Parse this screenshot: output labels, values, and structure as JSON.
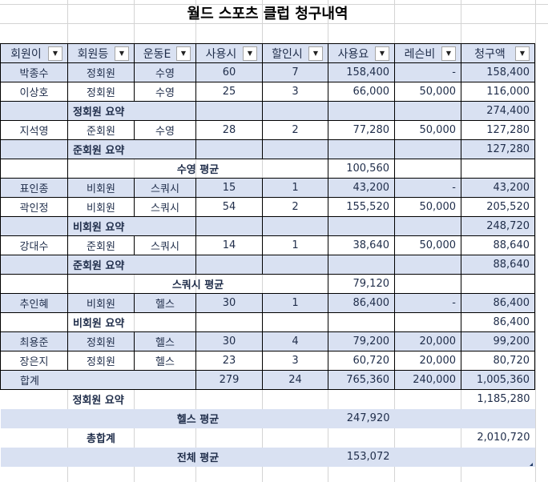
{
  "sheet": {
    "title": "월드 스포츠 클럽 청구내역",
    "headers": [
      "회원이",
      "회원등",
      "운동E",
      "사용시",
      "할인시",
      "사용요",
      "레슨비",
      "청구액"
    ],
    "filter_icon": "dropdown-arrow-icon"
  },
  "rows": [
    {
      "type": "data",
      "band": true,
      "cells": [
        "박종수",
        "정회원",
        "수영",
        "60",
        "7",
        "158,400",
        "-",
        "158,400"
      ]
    },
    {
      "type": "data",
      "band": false,
      "cells": [
        "이상호",
        "정회원",
        "수영",
        "25",
        "3",
        "66,000",
        "50,000",
        "116,000"
      ]
    },
    {
      "type": "subtotal",
      "band": true,
      "cells": [
        "",
        "정회원 요약",
        "",
        "",
        "",
        "",
        "",
        "274,400"
      ]
    },
    {
      "type": "data",
      "band": false,
      "cells": [
        "지석영",
        "준회원",
        "수영",
        "28",
        "2",
        "77,280",
        "50,000",
        "127,280"
      ]
    },
    {
      "type": "subtotal",
      "band": true,
      "cells": [
        "",
        "준회원 요약",
        "",
        "",
        "",
        "",
        "",
        "127,280"
      ]
    },
    {
      "type": "average",
      "band": false,
      "cells": [
        "",
        "수영 평균",
        "",
        "",
        "",
        "100,560",
        "",
        ""
      ]
    },
    {
      "type": "data",
      "band": true,
      "cells": [
        "표인종",
        "비회원",
        "스쿼시",
        "15",
        "1",
        "43,200",
        "-",
        "43,200"
      ]
    },
    {
      "type": "data",
      "band": false,
      "cells": [
        "곽인정",
        "비회원",
        "스쿼시",
        "54",
        "2",
        "155,520",
        "50,000",
        "205,520"
      ]
    },
    {
      "type": "subtotal",
      "band": true,
      "cells": [
        "",
        "비회원 요약",
        "",
        "",
        "",
        "",
        "",
        "248,720"
      ]
    },
    {
      "type": "data",
      "band": false,
      "cells": [
        "강대수",
        "준회원",
        "스쿼시",
        "14",
        "1",
        "38,640",
        "50,000",
        "88,640"
      ]
    },
    {
      "type": "subtotal",
      "band": true,
      "cells": [
        "",
        "준회원 요약",
        "",
        "",
        "",
        "",
        "",
        "88,640"
      ]
    },
    {
      "type": "average",
      "band": false,
      "cells": [
        "",
        "스쿼시 평균",
        "",
        "",
        "",
        "79,120",
        "",
        ""
      ]
    },
    {
      "type": "data",
      "band": true,
      "cells": [
        "추인혜",
        "비회원",
        "헬스",
        "30",
        "1",
        "86,400",
        "-",
        "86,400"
      ]
    },
    {
      "type": "subtotal",
      "band": false,
      "cells": [
        "",
        "비회원 요약",
        "",
        "",
        "",
        "",
        "",
        "86,400"
      ]
    },
    {
      "type": "data",
      "band": true,
      "cells": [
        "최용준",
        "정회원",
        "헬스",
        "30",
        "4",
        "79,200",
        "20,000",
        "99,200"
      ]
    },
    {
      "type": "data",
      "band": false,
      "cells": [
        "장은지",
        "정회원",
        "헬스",
        "23",
        "3",
        "60,720",
        "20,000",
        "80,720"
      ]
    },
    {
      "type": "total",
      "band": true,
      "cells": [
        "합계",
        "",
        "",
        "279",
        "24",
        "765,360",
        "240,000",
        "1,005,360"
      ]
    },
    {
      "type": "subtotal_out",
      "band": false,
      "cells": [
        "",
        "정회원 요약",
        "",
        "",
        "",
        "",
        "",
        "1,185,280"
      ]
    },
    {
      "type": "average_out",
      "band": true,
      "cells": [
        "",
        "헬스 평균",
        "",
        "",
        "",
        "247,920",
        "",
        ""
      ]
    },
    {
      "type": "grand_out",
      "band": false,
      "cells": [
        "",
        "총합계",
        "",
        "",
        "",
        "",
        "",
        "2,010,720"
      ]
    },
    {
      "type": "avg_all",
      "band": true,
      "cells": [
        "",
        "전체 평균",
        "",
        "",
        "",
        "153,072",
        "",
        ""
      ]
    }
  ]
}
